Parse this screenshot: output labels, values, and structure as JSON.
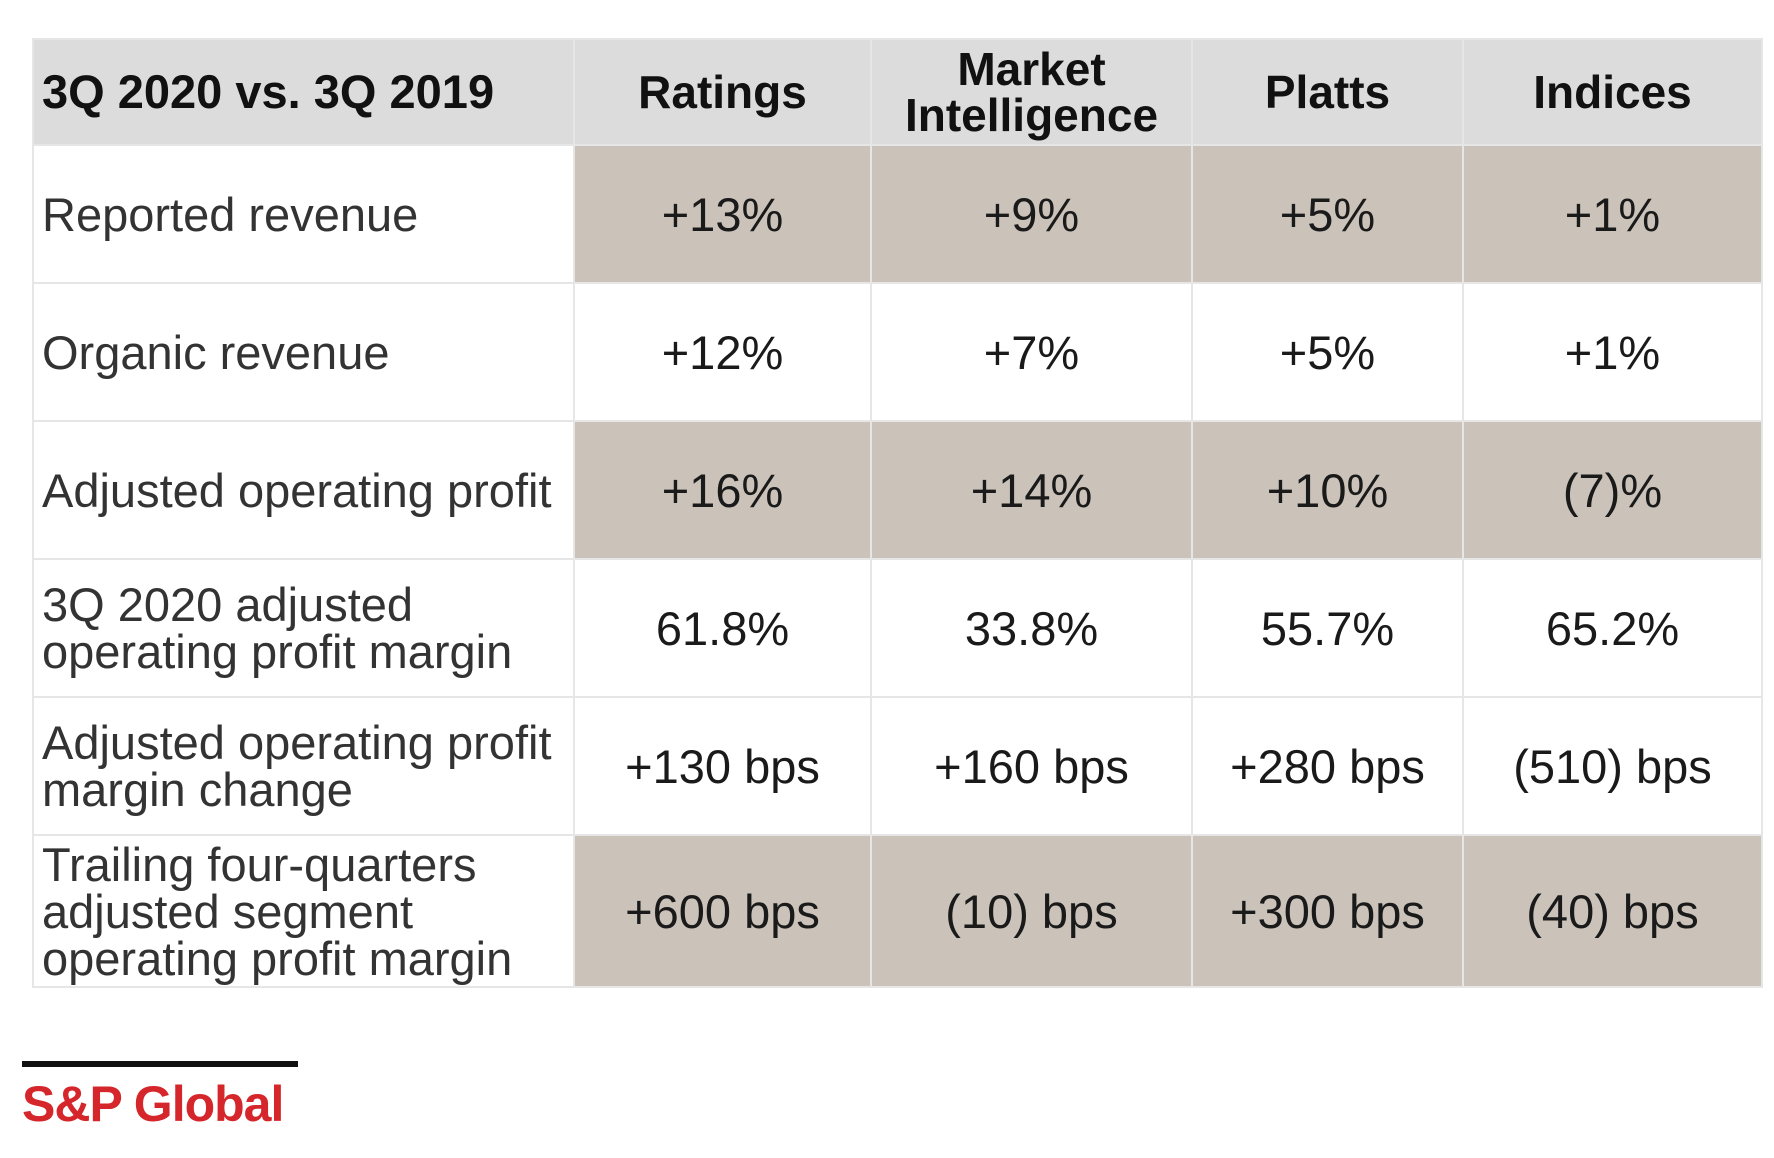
{
  "header": {
    "first": "3Q 2020 vs. 3Q 2019",
    "columns": [
      "Ratings",
      "Market Intelligence",
      "Platts",
      "Indices"
    ]
  },
  "rows": [
    {
      "label": "Reported revenue",
      "shaded": true,
      "values": [
        "+13%",
        "+9%",
        "+5%",
        "+1%"
      ]
    },
    {
      "label": "Organic revenue",
      "shaded": false,
      "values": [
        "+12%",
        "+7%",
        "+5%",
        "+1%"
      ]
    },
    {
      "label": "Adjusted operating profit",
      "shaded": true,
      "values": [
        "+16%",
        "+14%",
        "+10%",
        "(7)%"
      ]
    },
    {
      "label": "3Q 2020 adjusted operating profit margin",
      "shaded": false,
      "values": [
        "61.8%",
        "33.8%",
        "55.7%",
        "65.2%"
      ]
    },
    {
      "label": "Adjusted operating profit margin change",
      "shaded": false,
      "values": [
        "+130 bps",
        "+160 bps",
        "+280 bps",
        "(510) bps"
      ]
    },
    {
      "label": "Trailing four-quarters adjusted segment operating profit margin",
      "shaded": true,
      "values": [
        "+600 bps",
        "(10) bps",
        "+300 bps",
        "(40) bps"
      ]
    }
  ],
  "colors": {
    "header_bg": "#dcdcdc",
    "shade_bg": "#cbc3ba",
    "brand_red": "#d5262b"
  },
  "logo": {
    "text": "S&P Global"
  }
}
